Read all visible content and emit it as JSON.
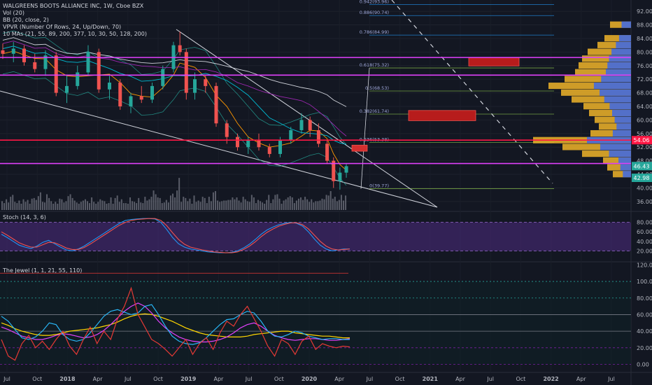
{
  "header": {
    "title": "WALGREENS BOOTS ALLIANCE INC, 1W, Cboe BZX",
    "indicators": [
      "Vol (20)",
      "BB (20, close, 2)",
      "VPVR (Number Of Rows, 24, Up/Down, 70)",
      "10 MAs (21, 55, 89, 200, 377, 10, 30, 50, 128, 200)"
    ]
  },
  "panes": {
    "stoch_label": "Stoch (14, 3, 6)",
    "jewel_label": "The Jewel (1, 1, 21, 55, 110)"
  },
  "colors": {
    "background": "#131722",
    "up": "#26a69a",
    "down": "#ef5350",
    "magenta": "#e040fb",
    "red_line": "#ff1744",
    "stoch_band": "#4a2a7a",
    "fib": "#2196f3"
  },
  "chart_data": [
    {
      "type": "candlestick",
      "title": "WALGREENS BOOTS ALLIANCE INC, 1W, Cboe BZX",
      "y_ticks": [
        36,
        40,
        44,
        48,
        52,
        56,
        60,
        64,
        68,
        72,
        76,
        80,
        84,
        88,
        92
      ],
      "ylim": [
        33.5,
        94.5
      ],
      "x_ticks": [
        "Jul",
        "Oct",
        "2018",
        "Apr",
        "Jul",
        "Oct",
        "2019",
        "Apr",
        "Jul",
        "Oct",
        "2020",
        "Apr",
        "Jul",
        "Oct",
        "2021",
        "Apr",
        "Jul",
        "Oct",
        "2022",
        "Apr",
        "Jul"
      ],
      "key_prices": [
        {
          "label": "54.06",
          "value": 54.06,
          "color": "#ff1744"
        },
        {
          "label": "46.43",
          "value": 46.43,
          "color": "#26a69a"
        },
        {
          "label": "42.98",
          "value": 42.98,
          "color": "#26a69a"
        }
      ],
      "horizontal_lines": [
        {
          "value": 78.4,
          "color": "#e040fb"
        },
        {
          "value": 73.2,
          "color": "#e040fb"
        },
        {
          "value": 54.06,
          "color": "#ff1744"
        },
        {
          "value": 47.2,
          "color": "#e040fb"
        }
      ],
      "fib_levels": [
        {
          "label": "0.942(93.96)",
          "value": 93.96
        },
        {
          "label": "0.886(90.74)",
          "value": 90.74
        },
        {
          "label": "0.786(84.99)",
          "value": 84.99
        },
        {
          "label": "0.618(75.32)",
          "value": 75.32
        },
        {
          "label": "0.5(68.53)",
          "value": 68.53
        },
        {
          "label": "0.382(61.74)",
          "value": 61.74
        },
        {
          "label": "0.236(53.38)",
          "value": 53.38
        },
        {
          "label": "0(39.77)",
          "value": 39.77
        }
      ],
      "price_series": [
        {
          "t": 0,
          "o": 80.5,
          "h": 82.5,
          "l": 78.0,
          "c": 79.5
        },
        {
          "t": 5,
          "o": 79.5,
          "h": 83.0,
          "l": 77.0,
          "c": 81.0
        },
        {
          "t": 10,
          "o": 81.0,
          "h": 82.0,
          "l": 76.0,
          "c": 77.0
        },
        {
          "t": 15,
          "o": 77.0,
          "h": 79.5,
          "l": 74.0,
          "c": 75.0
        },
        {
          "t": 20,
          "o": 75.0,
          "h": 80.5,
          "l": 73.0,
          "c": 79.0
        },
        {
          "t": 25,
          "o": 79.0,
          "h": 80.0,
          "l": 67.0,
          "c": 68.0
        },
        {
          "t": 30,
          "o": 68.0,
          "h": 73.0,
          "l": 65.0,
          "c": 70.0
        },
        {
          "t": 35,
          "o": 70.0,
          "h": 76.0,
          "l": 69.0,
          "c": 74.0
        },
        {
          "t": 40,
          "o": 74.0,
          "h": 82.0,
          "l": 73.0,
          "c": 80.0
        },
        {
          "t": 45,
          "o": 80.0,
          "h": 81.0,
          "l": 68.0,
          "c": 69.0
        },
        {
          "t": 50,
          "o": 69.0,
          "h": 73.0,
          "l": 66.0,
          "c": 71.0
        },
        {
          "t": 55,
          "o": 71.0,
          "h": 72.0,
          "l": 63.0,
          "c": 64.0
        },
        {
          "t": 60,
          "o": 64.0,
          "h": 68.0,
          "l": 62.0,
          "c": 67.0
        },
        {
          "t": 65,
          "o": 67.0,
          "h": 70.0,
          "l": 65.0,
          "c": 66.0
        },
        {
          "t": 70,
          "o": 66.0,
          "h": 71.0,
          "l": 65.0,
          "c": 70.0
        },
        {
          "t": 75,
          "o": 70.0,
          "h": 76.0,
          "l": 69.0,
          "c": 75.0
        },
        {
          "t": 80,
          "o": 75.0,
          "h": 83.0,
          "l": 74.0,
          "c": 82.0
        },
        {
          "t": 83,
          "o": 82.0,
          "h": 86.0,
          "l": 79.0,
          "c": 80.0
        },
        {
          "t": 86,
          "o": 80.0,
          "h": 81.0,
          "l": 66.0,
          "c": 68.0
        },
        {
          "t": 90,
          "o": 68.0,
          "h": 74.0,
          "l": 66.0,
          "c": 72.0
        },
        {
          "t": 95,
          "o": 72.0,
          "h": 73.0,
          "l": 68.0,
          "c": 70.0
        },
        {
          "t": 100,
          "o": 70.0,
          "h": 71.0,
          "l": 58.0,
          "c": 59.0
        },
        {
          "t": 105,
          "o": 59.0,
          "h": 60.0,
          "l": 53.0,
          "c": 55.0
        },
        {
          "t": 110,
          "o": 55.0,
          "h": 56.0,
          "l": 51.0,
          "c": 52.0
        },
        {
          "t": 115,
          "o": 52.0,
          "h": 55.0,
          "l": 50.0,
          "c": 54.0
        },
        {
          "t": 120,
          "o": 54.0,
          "h": 56.0,
          "l": 51.0,
          "c": 52.0
        },
        {
          "t": 125,
          "o": 52.0,
          "h": 53.0,
          "l": 49.0,
          "c": 50.0
        },
        {
          "t": 130,
          "o": 50.0,
          "h": 55.0,
          "l": 49.0,
          "c": 54.0
        },
        {
          "t": 135,
          "o": 54.0,
          "h": 58.0,
          "l": 53.0,
          "c": 57.0
        },
        {
          "t": 140,
          "o": 57.0,
          "h": 62.0,
          "l": 56.0,
          "c": 60.0
        },
        {
          "t": 144,
          "o": 60.0,
          "h": 61.0,
          "l": 55.0,
          "c": 57.0
        },
        {
          "t": 148,
          "o": 57.0,
          "h": 59.0,
          "l": 52.0,
          "c": 53.0
        },
        {
          "t": 152,
          "o": 53.0,
          "h": 54.0,
          "l": 47.0,
          "c": 48.0
        },
        {
          "t": 155,
          "o": 48.0,
          "h": 49.0,
          "l": 40.0,
          "c": 42.0
        },
        {
          "t": 158,
          "o": 42.0,
          "h": 46.0,
          "l": 39.5,
          "c": 44.5
        },
        {
          "t": 161,
          "o": 44.5,
          "h": 47.0,
          "l": 43.0,
          "c": 46.4
        }
      ],
      "volume_series": [
        14,
        11,
        17,
        12,
        21,
        24,
        13,
        11,
        15,
        10,
        17,
        13,
        16,
        10,
        18,
        19,
        16,
        22,
        28,
        13,
        12,
        25,
        19,
        14,
        10,
        13,
        10,
        18,
        17,
        12,
        14,
        22,
        25,
        19,
        15,
        12,
        10,
        13,
        15,
        17,
        14,
        11,
        20,
        13,
        10,
        13,
        17,
        15,
        14,
        10,
        11,
        20,
        10,
        19,
        23,
        13,
        17,
        11,
        11,
        10,
        20,
        14,
        13,
        11,
        19,
        12,
        11,
        21,
        15,
        17,
        21,
        31,
        25,
        20,
        19,
        11,
        12,
        16,
        12,
        23,
        26,
        20,
        31,
        51,
        13,
        21,
        19,
        14,
        18,
        10,
        23,
        13,
        15,
        13,
        21,
        19,
        11,
        21,
        14,
        28,
        30,
        15,
        13,
        14,
        15,
        15,
        16,
        16,
        20,
        17,
        20,
        15,
        12,
        21,
        17,
        14,
        13,
        24,
        20,
        11,
        16,
        14,
        12,
        10,
        16,
        24,
        11,
        17,
        24,
        25,
        18,
        10,
        15,
        17,
        20,
        22,
        20,
        11,
        15,
        18,
        20,
        16,
        21,
        17,
        13,
        17,
        12,
        14,
        14,
        15,
        18,
        17,
        24,
        23,
        30,
        18,
        21,
        14,
        16,
        24,
        15,
        23
      ]
    },
    {
      "type": "line",
      "title": "Stoch (14, 3, 6)",
      "y_ticks": [
        20,
        40,
        60,
        80
      ],
      "ylim": [
        0,
        100
      ],
      "band": [
        20,
        80
      ],
      "series": [
        {
          "color": "#2196f3",
          "values": [
            55,
            48,
            40,
            32,
            28,
            25,
            30,
            38,
            42,
            35,
            28,
            22,
            20,
            24,
            30,
            38,
            46,
            54,
            62,
            70,
            78,
            84,
            86,
            87,
            88,
            88,
            87,
            80,
            65,
            48,
            35,
            28,
            24,
            22,
            20,
            18,
            17,
            16,
            16,
            17,
            20,
            26,
            34,
            44,
            55,
            64,
            70,
            75,
            78,
            80,
            78,
            72,
            60,
            45,
            32,
            24,
            20,
            22,
            24,
            24
          ]
        },
        {
          "color": "#ef5350",
          "values": [
            60,
            53,
            45,
            37,
            32,
            28,
            28,
            33,
            38,
            37,
            32,
            26,
            23,
            23,
            27,
            34,
            42,
            50,
            58,
            66,
            74,
            80,
            84,
            86,
            87,
            88,
            88,
            84,
            73,
            58,
            44,
            34,
            28,
            25,
            22,
            20,
            18,
            17,
            16,
            16,
            18,
            23,
            30,
            39,
            50,
            59,
            66,
            72,
            76,
            79,
            79,
            75,
            66,
            53,
            40,
            30,
            24,
            22,
            23,
            24
          ]
        }
      ]
    },
    {
      "type": "line",
      "title": "The Jewel (1, 1, 21, 55, 110)",
      "y_ticks": [
        0,
        20,
        40,
        60,
        80,
        100,
        120
      ],
      "ylim": [
        -8,
        122
      ],
      "hlines": [
        0,
        20,
        40,
        60,
        80,
        100,
        110
      ],
      "series": [
        {
          "color": "#ffd600",
          "values": [
            50,
            47,
            43,
            40,
            38,
            36,
            35,
            35,
            36,
            38,
            40,
            41,
            42,
            43,
            44,
            46,
            48,
            51,
            55,
            58,
            60,
            61,
            60,
            58,
            55,
            52,
            48,
            44,
            41,
            38,
            36,
            35,
            34,
            33,
            33,
            33,
            34,
            36,
            37,
            38,
            39,
            40,
            40,
            38,
            37,
            36,
            35,
            34,
            34,
            33,
            32,
            32
          ]
        },
        {
          "color": "#e040fb",
          "values": [
            45,
            42,
            38,
            34,
            32,
            30,
            30,
            32,
            35,
            37,
            36,
            34,
            32,
            33,
            36,
            41,
            48,
            56,
            64,
            70,
            74,
            70,
            62,
            52,
            44,
            38,
            33,
            30,
            28,
            27,
            27,
            28,
            30,
            33,
            38,
            44,
            48,
            50,
            46,
            40,
            35,
            32,
            30,
            29,
            30,
            31,
            31,
            30,
            29,
            29,
            30,
            31
          ]
        },
        {
          "color": "#29b6f6",
          "values": [
            58,
            52,
            42,
            32,
            30,
            33,
            40,
            50,
            48,
            36,
            30,
            28,
            30,
            38,
            48,
            58,
            64,
            66,
            63,
            60,
            62,
            70,
            72,
            60,
            46,
            34,
            28,
            25,
            24,
            26,
            32,
            40,
            48,
            54,
            55,
            60,
            64,
            62,
            52,
            40,
            34,
            33,
            36,
            40,
            38,
            34,
            32,
            30,
            31,
            31,
            30,
            30
          ]
        },
        {
          "color": "#e53935",
          "values": [
            30,
            10,
            5,
            25,
            35,
            20,
            28,
            18,
            30,
            40,
            22,
            12,
            30,
            45,
            25,
            40,
            30,
            55,
            70,
            92,
            60,
            45,
            30,
            25,
            18,
            10,
            20,
            30,
            12,
            25,
            32,
            18,
            38,
            52,
            46,
            60,
            70,
            55,
            40,
            22,
            10,
            30,
            25,
            12,
            28,
            34,
            18,
            25,
            22,
            20,
            22,
            21
          ]
        }
      ]
    }
  ]
}
